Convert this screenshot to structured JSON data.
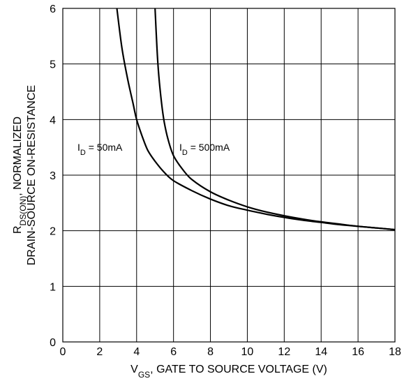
{
  "chart_data": {
    "type": "line",
    "title": "",
    "xlabel": {
      "main": "V",
      "sub": "GS",
      "rest": ", GATE TO SOURCE VOLTAGE (V)"
    },
    "ylabel": {
      "line1_main": "R",
      "line1_sub": "DS(ON)",
      "line1_rest": ", NORMALIZED",
      "line2": "DRAIN-SOURCE ON-RESISTANCE"
    },
    "xlim": [
      0,
      18
    ],
    "ylim": [
      0,
      6
    ],
    "xticks": [
      0,
      2,
      4,
      6,
      8,
      10,
      12,
      14,
      16,
      18
    ],
    "yticks": [
      0,
      1,
      2,
      3,
      4,
      5,
      6
    ],
    "grid": true,
    "series": [
      {
        "label": {
          "main": "I",
          "sub": "D",
          "rest": " = 50mA"
        },
        "x": [
          2.93,
          3.2,
          3.5,
          3.8,
          4.0,
          4.3,
          4.6,
          5.0,
          5.5,
          6.0,
          7.0,
          8.0,
          9.0,
          10.0,
          11.0,
          12.0,
          13.0,
          14.0,
          15.0,
          16.0,
          17.0,
          18.0
        ],
        "y": [
          6.0,
          5.3,
          4.75,
          4.3,
          4.0,
          3.7,
          3.45,
          3.25,
          3.05,
          2.9,
          2.72,
          2.57,
          2.45,
          2.37,
          2.3,
          2.24,
          2.19,
          2.15,
          2.11,
          2.08,
          2.05,
          2.02
        ]
      },
      {
        "label": {
          "main": "I",
          "sub": "D",
          "rest": " = 500mA"
        },
        "x": [
          5.0,
          5.1,
          5.2,
          5.35,
          5.5,
          5.7,
          6.0,
          6.5,
          7.0,
          8.0,
          9.0,
          10.0,
          11.0,
          12.0,
          13.0,
          14.0,
          15.0,
          16.0,
          17.0,
          18.0
        ],
        "y": [
          6.0,
          5.3,
          4.8,
          4.3,
          3.95,
          3.65,
          3.35,
          3.1,
          2.92,
          2.7,
          2.55,
          2.43,
          2.34,
          2.27,
          2.21,
          2.16,
          2.12,
          2.08,
          2.05,
          2.02
        ]
      }
    ]
  }
}
